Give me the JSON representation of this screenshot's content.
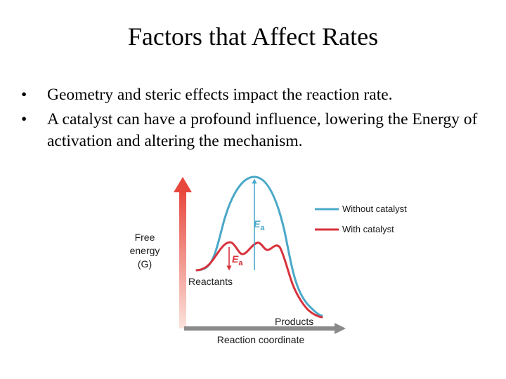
{
  "slide": {
    "title": "Factors that Affect Rates",
    "bullets": [
      {
        "marker": "•",
        "text": "Geometry and steric effects impact the reaction rate."
      },
      {
        "marker": "•",
        "text": "A catalyst can have a profound influence, lowering the Energy of activation and altering the mechanism."
      }
    ]
  },
  "diagram": {
    "y_axis_label": [
      "Free",
      "energy",
      "(G)"
    ],
    "x_axis_label": "Reaction coordinate",
    "reactants_label": "Reactants",
    "products_label": "Products",
    "ea_symbol": "E",
    "ea_subscript": "a",
    "legend": [
      {
        "label": "Without catalyst",
        "color": "#4aa8c8"
      },
      {
        "label": "With catalyst",
        "color": "#d8323c"
      }
    ],
    "colors": {
      "uncatalyzed": "#4aa8c8",
      "catalyzed": "#d8323c",
      "axis_arrow_top": "#e8473e",
      "axis_arrow_bottom": "#fbe3dd",
      "x_axis": "#8a8a8a",
      "text": "#1a1a1a"
    }
  }
}
